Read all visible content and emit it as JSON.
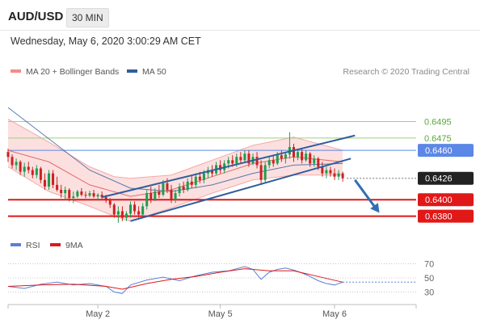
{
  "header": {
    "symbol": "AUD/USD",
    "timeframe": "30 MIN",
    "datetime": "Wednesday, May 6, 2020 3:00:29 AM CET"
  },
  "legend_main": [
    {
      "label": "MA 20 + Bollinger Bands",
      "color": "#f28b8b"
    },
    {
      "label": "MA 50",
      "color": "#2f5d9c"
    }
  ],
  "credit": "Research © 2020 Trading Central",
  "legend_rsi": [
    {
      "label": "RSI",
      "color": "#5b7fd6"
    },
    {
      "label": "9MA",
      "color": "#dd1a1a"
    }
  ],
  "colors": {
    "bullish_candle": "#1f9d4f",
    "bearish_candle": "#cc2222",
    "channel": "#2f5d9c",
    "target_line": "#6fbf4a",
    "pivot_line": "#5b87e6",
    "support_line": "#e01818",
    "arrow": "#2f6fb3",
    "last_price": "#222222"
  },
  "chart_data": [
    {
      "type": "candlestick",
      "xlim": [
        0,
        100
      ],
      "ylim": [
        0.6358,
        0.652
      ],
      "x_ticks": [
        {
          "x": 22,
          "label": "May 2"
        },
        {
          "x": 52,
          "label": "May 5"
        },
        {
          "x": 80,
          "label": "May 6"
        }
      ],
      "levels": [
        {
          "value": 0.6495,
          "label": "0.6495",
          "kind": "target"
        },
        {
          "value": 0.6475,
          "label": "0.6475",
          "kind": "target"
        },
        {
          "value": 0.646,
          "label": "0.6460",
          "kind": "pivot"
        },
        {
          "value": 0.6426,
          "label": "0.6426",
          "kind": "last"
        },
        {
          "value": 0.64,
          "label": "0.6400",
          "kind": "support"
        },
        {
          "value": 0.638,
          "label": "0.6380",
          "kind": "support"
        }
      ],
      "ohlc": [
        [
          0,
          0.6458,
          0.6462,
          0.6446,
          0.6452
        ],
        [
          1,
          0.6452,
          0.6455,
          0.6438,
          0.6442
        ],
        [
          2,
          0.6442,
          0.645,
          0.6436,
          0.6446
        ],
        [
          3,
          0.6446,
          0.6448,
          0.643,
          0.6434
        ],
        [
          4,
          0.6434,
          0.6445,
          0.6428,
          0.644
        ],
        [
          5,
          0.644,
          0.6446,
          0.6432,
          0.6436
        ],
        [
          6,
          0.6436,
          0.644,
          0.6426,
          0.643
        ],
        [
          7,
          0.643,
          0.6442,
          0.6426,
          0.6438
        ],
        [
          8,
          0.6438,
          0.644,
          0.642,
          0.6424
        ],
        [
          9,
          0.6424,
          0.6432,
          0.6412,
          0.6416
        ],
        [
          10,
          0.6416,
          0.6436,
          0.6412,
          0.6432
        ],
        [
          11,
          0.6432,
          0.6436,
          0.6414,
          0.6418
        ],
        [
          12,
          0.6418,
          0.6428,
          0.641,
          0.6412
        ],
        [
          13,
          0.6412,
          0.6418,
          0.6402,
          0.6408
        ],
        [
          14,
          0.6408,
          0.6416,
          0.64,
          0.6412
        ],
        [
          15,
          0.6412,
          0.6414,
          0.6398,
          0.6402
        ],
        [
          16,
          0.6402,
          0.641,
          0.6396,
          0.6404
        ],
        [
          17,
          0.6404,
          0.6412,
          0.6402,
          0.641
        ],
        [
          18,
          0.641,
          0.6414,
          0.6404,
          0.6406
        ],
        [
          19,
          0.6406,
          0.641,
          0.6402,
          0.6405
        ],
        [
          20,
          0.6405,
          0.6411,
          0.6403,
          0.6408
        ],
        [
          21,
          0.6408,
          0.6412,
          0.6402,
          0.6404
        ],
        [
          22,
          0.6404,
          0.6408,
          0.64,
          0.6406
        ],
        [
          23,
          0.6406,
          0.641,
          0.6401,
          0.6403
        ],
        [
          24,
          0.6403,
          0.6406,
          0.6396,
          0.6399
        ],
        [
          25,
          0.6399,
          0.6402,
          0.639,
          0.6394
        ],
        [
          26,
          0.6394,
          0.6396,
          0.6378,
          0.6382
        ],
        [
          27,
          0.6382,
          0.6392,
          0.6372,
          0.6386
        ],
        [
          28,
          0.6386,
          0.6392,
          0.6374,
          0.6378
        ],
        [
          29,
          0.6378,
          0.6386,
          0.6374,
          0.6383
        ],
        [
          30,
          0.6383,
          0.6398,
          0.6378,
          0.6394
        ],
        [
          31,
          0.6394,
          0.6398,
          0.6382,
          0.6386
        ],
        [
          32,
          0.6386,
          0.6392,
          0.6378,
          0.6382
        ],
        [
          33,
          0.6382,
          0.6396,
          0.638,
          0.6392
        ],
        [
          34,
          0.6392,
          0.6412,
          0.6388,
          0.6408
        ],
        [
          35,
          0.6408,
          0.6416,
          0.6396,
          0.64
        ],
        [
          36,
          0.64,
          0.6414,
          0.6398,
          0.641
        ],
        [
          37,
          0.641,
          0.6418,
          0.6402,
          0.6406
        ],
        [
          38,
          0.6406,
          0.6424,
          0.6404,
          0.642
        ],
        [
          39,
          0.642,
          0.6426,
          0.6408,
          0.6412
        ],
        [
          40,
          0.6412,
          0.6418,
          0.6396,
          0.64
        ],
        [
          41,
          0.64,
          0.6412,
          0.6396,
          0.6408
        ],
        [
          42,
          0.6408,
          0.642,
          0.6404,
          0.6416
        ],
        [
          43,
          0.6416,
          0.6422,
          0.6408,
          0.6412
        ],
        [
          44,
          0.6412,
          0.6426,
          0.641,
          0.6422
        ],
        [
          45,
          0.6422,
          0.643,
          0.6414,
          0.6418
        ],
        [
          46,
          0.6418,
          0.6432,
          0.6414,
          0.6428
        ],
        [
          47,
          0.6428,
          0.6434,
          0.642,
          0.6424
        ],
        [
          48,
          0.6424,
          0.6436,
          0.642,
          0.6432
        ],
        [
          49,
          0.6432,
          0.644,
          0.6426,
          0.6436
        ],
        [
          50,
          0.6436,
          0.6442,
          0.6428,
          0.6432
        ],
        [
          51,
          0.6432,
          0.6446,
          0.643,
          0.6442
        ],
        [
          52,
          0.6442,
          0.6448,
          0.6432,
          0.6436
        ],
        [
          53,
          0.6436,
          0.6448,
          0.6432,
          0.6444
        ],
        [
          54,
          0.6444,
          0.6452,
          0.6438,
          0.6448
        ],
        [
          55,
          0.6448,
          0.6454,
          0.644,
          0.6444
        ],
        [
          56,
          0.6444,
          0.6456,
          0.644,
          0.6452
        ],
        [
          57,
          0.6452,
          0.6458,
          0.6444,
          0.6448
        ],
        [
          58,
          0.6448,
          0.646,
          0.6446,
          0.6456
        ],
        [
          59,
          0.6456,
          0.646,
          0.644,
          0.6444
        ],
        [
          60,
          0.6444,
          0.6456,
          0.6442,
          0.6452
        ],
        [
          61,
          0.6452,
          0.6458,
          0.6438,
          0.6442
        ],
        [
          62,
          0.6442,
          0.6448,
          0.6418,
          0.6424
        ],
        [
          63,
          0.6424,
          0.6446,
          0.642,
          0.6442
        ],
        [
          64,
          0.6442,
          0.6452,
          0.6438,
          0.6448
        ],
        [
          65,
          0.6448,
          0.6454,
          0.644,
          0.6444
        ],
        [
          66,
          0.6444,
          0.6458,
          0.6442,
          0.6454
        ],
        [
          67,
          0.6454,
          0.646,
          0.6446,
          0.645
        ],
        [
          68,
          0.645,
          0.6458,
          0.6444,
          0.6455
        ],
        [
          69,
          0.6455,
          0.6482,
          0.645,
          0.6464
        ],
        [
          70,
          0.6464,
          0.6468,
          0.6446,
          0.6452
        ],
        [
          71,
          0.6452,
          0.6462,
          0.6448,
          0.6458
        ],
        [
          72,
          0.6458,
          0.6462,
          0.6444,
          0.6448
        ],
        [
          73,
          0.6448,
          0.646,
          0.6446,
          0.6456
        ],
        [
          74,
          0.6456,
          0.6458,
          0.644,
          0.6444
        ],
        [
          75,
          0.6444,
          0.6454,
          0.644,
          0.645
        ],
        [
          76,
          0.645,
          0.6452,
          0.6436,
          0.644
        ],
        [
          77,
          0.644,
          0.6446,
          0.6428,
          0.6432
        ],
        [
          78,
          0.6432,
          0.644,
          0.6426,
          0.6436
        ],
        [
          79,
          0.6436,
          0.644,
          0.6428,
          0.6432
        ],
        [
          80,
          0.6432,
          0.6438,
          0.6424,
          0.6428
        ],
        [
          81,
          0.6428,
          0.6436,
          0.6424,
          0.6432
        ],
        [
          82,
          0.6432,
          0.6434,
          0.6422,
          0.6426
        ]
      ],
      "ma20": [
        [
          0,
          0.646
        ],
        [
          10,
          0.6446
        ],
        [
          20,
          0.6418
        ],
        [
          30,
          0.6404
        ],
        [
          40,
          0.6412
        ],
        [
          50,
          0.6428
        ],
        [
          60,
          0.6444
        ],
        [
          70,
          0.6452
        ],
        [
          82,
          0.6446
        ]
      ],
      "bollinger_upper": [
        [
          0,
          0.6498
        ],
        [
          10,
          0.647
        ],
        [
          20,
          0.644
        ],
        [
          26,
          0.6428
        ],
        [
          30,
          0.6426
        ],
        [
          40,
          0.643
        ],
        [
          50,
          0.6448
        ],
        [
          60,
          0.6466
        ],
        [
          70,
          0.6476
        ],
        [
          82,
          0.646
        ]
      ],
      "bollinger_lower": [
        [
          0,
          0.644
        ],
        [
          10,
          0.641
        ],
        [
          20,
          0.6392
        ],
        [
          26,
          0.638
        ],
        [
          30,
          0.6374
        ],
        [
          40,
          0.639
        ],
        [
          50,
          0.6408
        ],
        [
          60,
          0.6424
        ],
        [
          70,
          0.643
        ],
        [
          82,
          0.643
        ]
      ],
      "ma50": [
        [
          0,
          0.6512
        ],
        [
          10,
          0.6474
        ],
        [
          20,
          0.6436
        ],
        [
          30,
          0.6414
        ],
        [
          40,
          0.641
        ],
        [
          50,
          0.6418
        ],
        [
          60,
          0.6432
        ],
        [
          70,
          0.6442
        ],
        [
          82,
          0.6444
        ]
      ],
      "channel_lines": [
        [
          [
            23,
            0.6403
          ],
          [
            85,
            0.6478
          ]
        ],
        [
          [
            30,
            0.6374
          ],
          [
            84,
            0.645
          ]
        ]
      ],
      "arrow": [
        [
          85,
          0.6424
        ],
        [
          91,
          0.6384
        ]
      ]
    },
    {
      "type": "line",
      "name": "RSI panel",
      "xlim": [
        0,
        100
      ],
      "ylim": [
        18,
        82
      ],
      "y_ticks": [
        70,
        50,
        30
      ],
      "rsi": [
        [
          0,
          38
        ],
        [
          4,
          35
        ],
        [
          8,
          41
        ],
        [
          12,
          44
        ],
        [
          16,
          40
        ],
        [
          20,
          42
        ],
        [
          24,
          38
        ],
        [
          26,
          30
        ],
        [
          28,
          28
        ],
        [
          30,
          40
        ],
        [
          34,
          47
        ],
        [
          38,
          51
        ],
        [
          42,
          46
        ],
        [
          46,
          53
        ],
        [
          50,
          58
        ],
        [
          54,
          60
        ],
        [
          58,
          66
        ],
        [
          60,
          62
        ],
        [
          62,
          48
        ],
        [
          64,
          58
        ],
        [
          66,
          62
        ],
        [
          68,
          64
        ],
        [
          70,
          61
        ],
        [
          72,
          57
        ],
        [
          74,
          52
        ],
        [
          76,
          46
        ],
        [
          78,
          42
        ],
        [
          80,
          40
        ],
        [
          82,
          44
        ]
      ],
      "ma9": [
        [
          0,
          38
        ],
        [
          8,
          40
        ],
        [
          16,
          41
        ],
        [
          24,
          38
        ],
        [
          28,
          34
        ],
        [
          34,
          42
        ],
        [
          40,
          48
        ],
        [
          46,
          52
        ],
        [
          52,
          58
        ],
        [
          58,
          63
        ],
        [
          64,
          60
        ],
        [
          70,
          60
        ],
        [
          76,
          52
        ],
        [
          82,
          44
        ]
      ]
    }
  ]
}
